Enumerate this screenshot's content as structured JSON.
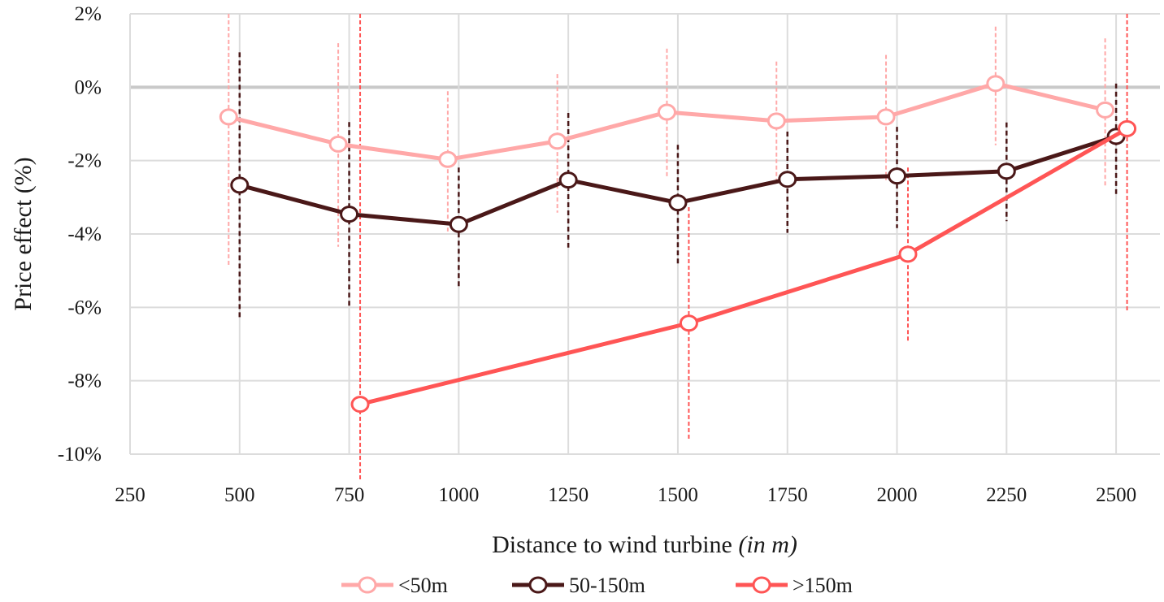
{
  "chart_data": {
    "type": "line",
    "title": "",
    "xlabel": "Distance to wind turbine",
    "xlabel_italic": "(in m)",
    "ylabel": "Price effect (%)",
    "xlim": [
      250,
      2600
    ],
    "ylim": [
      -10,
      2
    ],
    "x_ticks": [
      250,
      500,
      750,
      1000,
      1250,
      1500,
      1750,
      2000,
      2250,
      2500
    ],
    "x_tick_labels": [
      "250",
      "500",
      "750",
      "1000",
      "1250",
      "1500",
      "1750",
      "2000",
      "2250",
      "2500"
    ],
    "y_ticks": [
      2,
      0,
      -2,
      -4,
      -6,
      -8,
      -10
    ],
    "y_tick_labels": [
      "2%",
      "0%",
      "-2%",
      "-4%",
      "-6%",
      "-8%",
      "-10%"
    ],
    "grid": true,
    "legend_position": "bottom",
    "series": [
      {
        "name": "<50m",
        "color": "#FFA8A8",
        "x": [
          475,
          725,
          975,
          1225,
          1475,
          1725,
          1975,
          2225,
          2475
        ],
        "y": [
          -0.81,
          -1.55,
          -1.97,
          -1.47,
          -0.68,
          -0.92,
          -0.81,
          0.1,
          -0.62
        ],
        "ci_low": [
          -4.9,
          -4.35,
          -3.93,
          -3.42,
          -2.47,
          -2.53,
          -2.53,
          -1.58,
          -2.68
        ],
        "ci_high": [
          2.0,
          1.2,
          -0.11,
          0.36,
          1.05,
          0.7,
          0.88,
          1.65,
          1.33
        ]
      },
      {
        "name": "50-150m",
        "color": "#4A1818",
        "x": [
          500,
          750,
          1000,
          1250,
          1500,
          1750,
          2000,
          2250,
          2500
        ],
        "y": [
          -2.67,
          -3.46,
          -3.74,
          -2.53,
          -3.15,
          -2.51,
          -2.42,
          -2.29,
          -1.34
        ],
        "ci_low": [
          -6.3,
          -6.0,
          -5.45,
          -4.37,
          -4.84,
          -3.97,
          -3.84,
          -3.65,
          -2.91
        ],
        "ci_high": [
          0.95,
          -0.95,
          -2.19,
          -0.7,
          -1.57,
          -1.21,
          -1.08,
          -0.96,
          0.1
        ]
      },
      {
        "name": ">150m",
        "color": "#FF5555",
        "x": [
          775,
          1525,
          2025,
          2525
        ],
        "y": [
          -8.64,
          -6.43,
          -4.55,
          -1.13
        ],
        "ci_low": [
          -10.7,
          -9.61,
          -6.91,
          -6.13
        ],
        "ci_high": [
          2.0,
          -3.27,
          -2.19,
          2.0
        ]
      }
    ]
  }
}
